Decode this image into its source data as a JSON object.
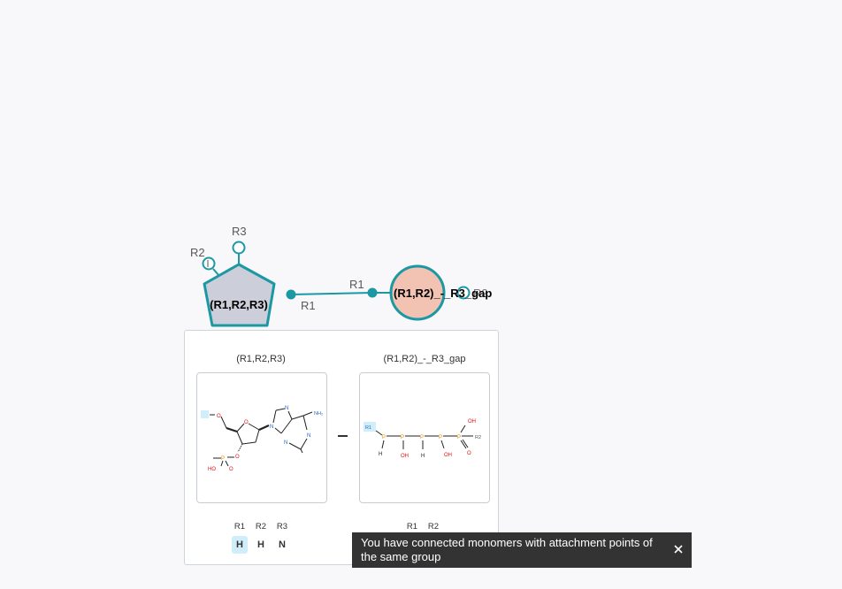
{
  "canvas": {
    "sugar_monomer": {
      "label": "(R1,R2,R3)",
      "fill": "#cccfd9",
      "stroke": "#1c98a4"
    },
    "phosphate_monomer": {
      "label": "(R1,R2)_-_R3_gap",
      "fill": "#f2c3b2",
      "stroke": "#1c98a4"
    },
    "bond": {
      "start_label": "R1",
      "end_label": "R1"
    },
    "sugar_attachment_points": [
      "R2",
      "R3"
    ],
    "phosphate_stub_label": "R2"
  },
  "preview": {
    "left_monomer": {
      "title": "(R1,R2,R3)",
      "ap_headers": [
        "R1",
        "R2",
        "R3"
      ],
      "ap_values": [
        "H",
        "H",
        "N"
      ],
      "structure_text": {
        "nh2": "NH₂",
        "o": "O",
        "n": "N",
        "ho": "HO",
        "p": "P"
      }
    },
    "right_monomer": {
      "title": "(R1,R2)_-_R3_gap",
      "ap_headers": [
        "R1",
        "R2"
      ],
      "structure_text": {
        "r1": "R1",
        "r2": "R2",
        "p": "P",
        "oh": "OH",
        "o": "O",
        "h": "H"
      }
    }
  },
  "toast": {
    "message": "You have connected monomers with attachment points of the same group",
    "close_icon": "close-icon"
  }
}
